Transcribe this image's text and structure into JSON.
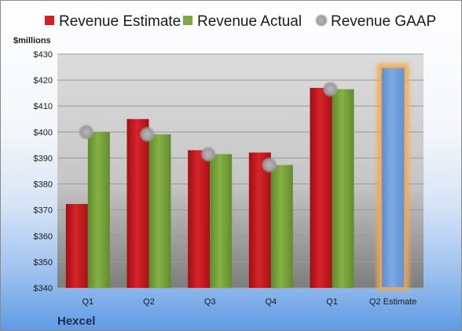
{
  "chart_data": {
    "type": "bar",
    "company": "Hexcel",
    "ylabel": "$millions",
    "categories": [
      "Q1",
      "Q2",
      "Q3",
      "Q4",
      "Q1",
      "Q2 Estimate"
    ],
    "ylim": [
      340,
      430
    ],
    "yticks": [
      "$340",
      "$350",
      "$360",
      "$370",
      "$380",
      "$390",
      "$400",
      "$410",
      "$420",
      "$430"
    ],
    "grid": true,
    "legend_position": "top",
    "series": [
      {
        "name": "Revenue Estimate",
        "type": "bar",
        "color": "#c8161d",
        "values": [
          372.3,
          405.0,
          393.0,
          392.1,
          417.0,
          null
        ]
      },
      {
        "name": "Revenue Actual",
        "type": "bar",
        "color": "#77a23c",
        "values": [
          400.0,
          399.1,
          391.5,
          387.3,
          416.5,
          null
        ]
      },
      {
        "name": "Revenue GAAP",
        "type": "marker",
        "color": "#a9a9a9",
        "values": [
          400.0,
          399.1,
          391.5,
          387.3,
          416.5,
          null
        ]
      },
      {
        "name": "Q2 Estimate",
        "type": "bar",
        "color": "#6f9fdc",
        "highlight": "#f5a94b",
        "values": [
          null,
          null,
          null,
          null,
          null,
          424.8
        ]
      }
    ]
  }
}
